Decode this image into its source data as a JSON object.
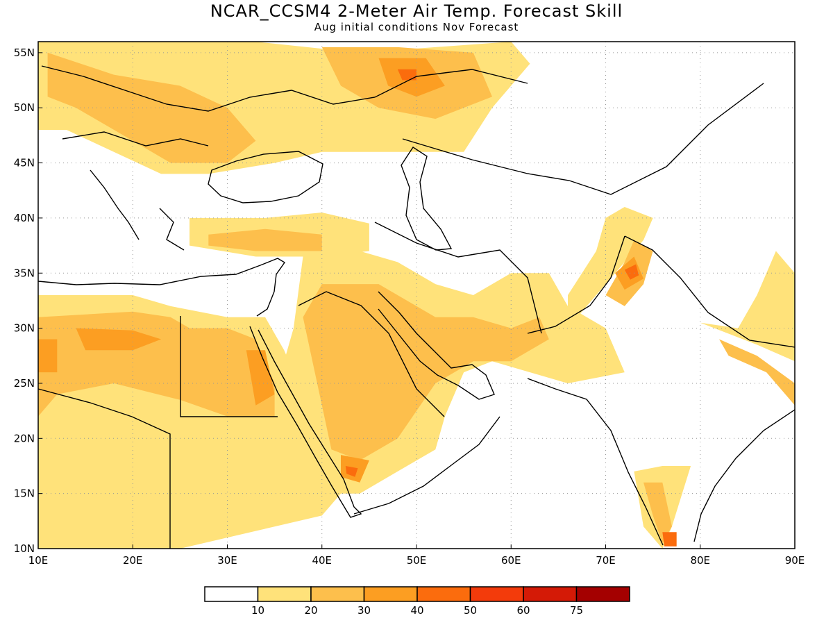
{
  "title": "NCAR_CCSM4 2-Meter Air Temp. Forecast Skill",
  "subtitle": "Aug initial conditions  Nov Forecast",
  "map": {
    "lon_range": [
      10,
      90
    ],
    "lat_range": [
      10,
      56
    ],
    "lon_ticks": [
      {
        "value": 10,
        "label": "10E"
      },
      {
        "value": 20,
        "label": "20E"
      },
      {
        "value": 30,
        "label": "30E"
      },
      {
        "value": 40,
        "label": "40E"
      },
      {
        "value": 50,
        "label": "50E"
      },
      {
        "value": 60,
        "label": "60E"
      },
      {
        "value": 70,
        "label": "70E"
      },
      {
        "value": 80,
        "label": "80E"
      },
      {
        "value": 90,
        "label": "90E"
      }
    ],
    "lat_ticks": [
      {
        "value": 10,
        "label": "10N"
      },
      {
        "value": 15,
        "label": "15N"
      },
      {
        "value": 20,
        "label": "20N"
      },
      {
        "value": 25,
        "label": "25N"
      },
      {
        "value": 30,
        "label": "30N"
      },
      {
        "value": 35,
        "label": "35N"
      },
      {
        "value": 40,
        "label": "40N"
      },
      {
        "value": 45,
        "label": "45N"
      },
      {
        "value": 50,
        "label": "50N"
      },
      {
        "value": 55,
        "label": "55N"
      }
    ],
    "grid": "dotted"
  },
  "colorbar": {
    "bins": [
      {
        "color": "#ffffff"
      },
      {
        "color": "#ffe27a"
      },
      {
        "color": "#fdbf4c"
      },
      {
        "color": "#fc9e22"
      },
      {
        "color": "#fb6c0d"
      },
      {
        "color": "#f33b0b"
      },
      {
        "color": "#d41a06"
      },
      {
        "color": "#a40000"
      }
    ],
    "labels": [
      "10",
      "20",
      "30",
      "40",
      "50",
      "60",
      "75"
    ]
  },
  "skill_regions": [
    {
      "level": 1,
      "points": [
        [
          10,
          56
        ],
        [
          33,
          56
        ],
        [
          44,
          55
        ],
        [
          52,
          55.5
        ],
        [
          60,
          56
        ],
        [
          62,
          54
        ],
        [
          58,
          50
        ],
        [
          55,
          46
        ],
        [
          48,
          46
        ],
        [
          40,
          46
        ],
        [
          35,
          45
        ],
        [
          28,
          44
        ],
        [
          23,
          44
        ],
        [
          18,
          46
        ],
        [
          13,
          48
        ],
        [
          10,
          48
        ]
      ]
    },
    {
      "level": 2,
      "points": [
        [
          11,
          55
        ],
        [
          18,
          53
        ],
        [
          25,
          52
        ],
        [
          30,
          50
        ],
        [
          33,
          47
        ],
        [
          30,
          45
        ],
        [
          24,
          45
        ],
        [
          20,
          47
        ],
        [
          14,
          50
        ],
        [
          11,
          51
        ]
      ]
    },
    {
      "level": 2,
      "points": [
        [
          40,
          55.5
        ],
        [
          48,
          55.5
        ],
        [
          56,
          55
        ],
        [
          58,
          51
        ],
        [
          52,
          49
        ],
        [
          46,
          50
        ],
        [
          42,
          52
        ]
      ]
    },
    {
      "level": 3,
      "points": [
        [
          46,
          54.5
        ],
        [
          51,
          54.5
        ],
        [
          53,
          52
        ],
        [
          50,
          51
        ],
        [
          47,
          52
        ]
      ]
    },
    {
      "level": 4,
      "points": [
        [
          48,
          53.5
        ],
        [
          50,
          53.5
        ],
        [
          50,
          52.5
        ],
        [
          48.5,
          52.5
        ]
      ]
    },
    {
      "level": 1,
      "points": [
        [
          26,
          40
        ],
        [
          34,
          40
        ],
        [
          40,
          40.5
        ],
        [
          45,
          39.5
        ],
        [
          45,
          37
        ],
        [
          40,
          36.5
        ],
        [
          33,
          36.5
        ],
        [
          26,
          37.5
        ]
      ]
    },
    {
      "level": 2,
      "points": [
        [
          28,
          38.5
        ],
        [
          34,
          39
        ],
        [
          40,
          38.5
        ],
        [
          40,
          37
        ],
        [
          33,
          37
        ],
        [
          28,
          37.5
        ]
      ]
    },
    {
      "level": 1,
      "points": [
        [
          10,
          33
        ],
        [
          20,
          33
        ],
        [
          24,
          32
        ],
        [
          30,
          31
        ],
        [
          34,
          31
        ],
        [
          36,
          28
        ],
        [
          38,
          24
        ],
        [
          40,
          21
        ],
        [
          40,
          18
        ],
        [
          42,
          15
        ],
        [
          40,
          13
        ],
        [
          35,
          12
        ],
        [
          30,
          11
        ],
        [
          25,
          10
        ],
        [
          10,
          10
        ]
      ]
    },
    {
      "level": 2,
      "points": [
        [
          10,
          31
        ],
        [
          20,
          31.5
        ],
        [
          24,
          31
        ],
        [
          26,
          30
        ],
        [
          30,
          30
        ],
        [
          33,
          29
        ],
        [
          35,
          25
        ],
        [
          35,
          22
        ],
        [
          30,
          22
        ],
        [
          25,
          23.5
        ],
        [
          18,
          25
        ],
        [
          12,
          24
        ],
        [
          10,
          22
        ]
      ]
    },
    {
      "level": 3,
      "points": [
        [
          14,
          30
        ],
        [
          20,
          29.8
        ],
        [
          23,
          29
        ],
        [
          20,
          28
        ],
        [
          15,
          28
        ]
      ]
    },
    {
      "level": 3,
      "points": [
        [
          10,
          29
        ],
        [
          12,
          29
        ],
        [
          12,
          26
        ],
        [
          10,
          26
        ]
      ]
    },
    {
      "level": 3,
      "points": [
        [
          32,
          28
        ],
        [
          34,
          28
        ],
        [
          35,
          24
        ],
        [
          33,
          23
        ]
      ]
    },
    {
      "level": 1,
      "points": [
        [
          38,
          36.5
        ],
        [
          44,
          37
        ],
        [
          48,
          36
        ],
        [
          52,
          34
        ],
        [
          56,
          33
        ],
        [
          60,
          35
        ],
        [
          64,
          35
        ],
        [
          66,
          32
        ],
        [
          70,
          30
        ],
        [
          72,
          26
        ],
        [
          66,
          25
        ],
        [
          62,
          26
        ],
        [
          58,
          27
        ],
        [
          55,
          26
        ],
        [
          53,
          22
        ],
        [
          52,
          19
        ],
        [
          48,
          17
        ],
        [
          44,
          15
        ],
        [
          41,
          15
        ],
        [
          39,
          19
        ],
        [
          38,
          23
        ],
        [
          36,
          27
        ],
        [
          37,
          30
        ]
      ]
    },
    {
      "level": 2,
      "points": [
        [
          40,
          34
        ],
        [
          46,
          34
        ],
        [
          52,
          31
        ],
        [
          56,
          31
        ],
        [
          60,
          30
        ],
        [
          63,
          31
        ],
        [
          64,
          29
        ],
        [
          60,
          27
        ],
        [
          56,
          27
        ],
        [
          52,
          25
        ],
        [
          48,
          20
        ],
        [
          44,
          18
        ],
        [
          41,
          19
        ],
        [
          40,
          23
        ],
        [
          39,
          27
        ],
        [
          38,
          31
        ]
      ]
    },
    {
      "level": 3,
      "points": [
        [
          42,
          18.5
        ],
        [
          45,
          18
        ],
        [
          44,
          16
        ],
        [
          42,
          16.5
        ]
      ]
    },
    {
      "level": 4,
      "points": [
        [
          42.5,
          17.5
        ],
        [
          43.8,
          17.3
        ],
        [
          43.5,
          16.5
        ],
        [
          42.6,
          16.8
        ]
      ]
    },
    {
      "level": 1,
      "points": [
        [
          66,
          30
        ],
        [
          72,
          36
        ],
        [
          74,
          38
        ],
        [
          75,
          40
        ],
        [
          72,
          41
        ],
        [
          70,
          40
        ],
        [
          69,
          37
        ],
        [
          66,
          33
        ]
      ]
    },
    {
      "level": 2,
      "points": [
        [
          70,
          33
        ],
        [
          72,
          36
        ],
        [
          73,
          38
        ],
        [
          75,
          37
        ],
        [
          74,
          34
        ],
        [
          72,
          32
        ]
      ]
    },
    {
      "level": 3,
      "points": [
        [
          71,
          35
        ],
        [
          73,
          36.5
        ],
        [
          74,
          34.5
        ],
        [
          72,
          33.5
        ]
      ]
    },
    {
      "level": 4,
      "points": [
        [
          72,
          35.3
        ],
        [
          73.2,
          35.8
        ],
        [
          73.5,
          34.8
        ],
        [
          72.6,
          34.4
        ]
      ]
    },
    {
      "level": 1,
      "points": [
        [
          80,
          30.5
        ],
        [
          86,
          28.5
        ],
        [
          90,
          27
        ],
        [
          90,
          35
        ],
        [
          88,
          37
        ],
        [
          86,
          33
        ],
        [
          84,
          30
        ]
      ]
    },
    {
      "level": 2,
      "points": [
        [
          82,
          29
        ],
        [
          86,
          27.5
        ],
        [
          90,
          25
        ],
        [
          90,
          23
        ],
        [
          87,
          26
        ],
        [
          83,
          27.5
        ]
      ]
    },
    {
      "level": 1,
      "points": [
        [
          73,
          17
        ],
        [
          76,
          17.5
        ],
        [
          79,
          17.5
        ],
        [
          77,
          12
        ],
        [
          76,
          10
        ],
        [
          74,
          12
        ]
      ]
    },
    {
      "level": 2,
      "points": [
        [
          74,
          16
        ],
        [
          76,
          16
        ],
        [
          77,
          12
        ],
        [
          76,
          10.5
        ],
        [
          75,
          13
        ]
      ]
    },
    {
      "level": 4,
      "points": [
        [
          76,
          11.5
        ],
        [
          77.5,
          11.5
        ],
        [
          77.5,
          10.2
        ],
        [
          76.2,
          10.2
        ]
      ]
    }
  ]
}
